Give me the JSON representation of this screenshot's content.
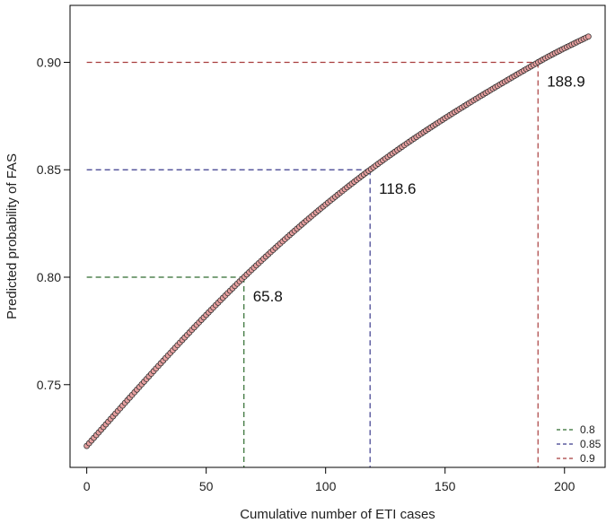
{
  "chart_data": {
    "type": "scatter",
    "xlabel": "Cumulative number of ETI cases",
    "ylabel": "Predicted probability of FAS",
    "xlim": [
      -7,
      217
    ],
    "ylim": [
      0.7115,
      0.9265
    ],
    "x_ticks": [
      0,
      50,
      100,
      150,
      200
    ],
    "x_tick_labels": [
      "0",
      "50",
      "100",
      "150",
      "200"
    ],
    "y_ticks": [
      0.75,
      0.8,
      0.85,
      0.9
    ],
    "y_tick_labels": [
      "0.75",
      "0.80",
      "0.85",
      "0.90"
    ],
    "grid": false,
    "legend_position": "bottom-right",
    "series": [
      {
        "marker_color": "#e8a0a0",
        "edge_color": "#333333",
        "x_start": 0,
        "x_end": 210,
        "x_step": 1,
        "key_points": [
          {
            "x": 0,
            "y": 0.7215
          },
          {
            "x": 65.8,
            "y": 0.8
          },
          {
            "x": 118.6,
            "y": 0.85
          },
          {
            "x": 188.9,
            "y": 0.9
          },
          {
            "x": 210,
            "y": 0.912
          }
        ]
      }
    ],
    "thresholds": [
      {
        "name": "0.8",
        "y": 0.8,
        "x": 65.8,
        "label": "65.8",
        "color": "#2e6b2e"
      },
      {
        "name": "0.85",
        "y": 0.85,
        "x": 118.6,
        "label": "118.6",
        "color": "#3a3a8c"
      },
      {
        "name": "0.9",
        "y": 0.9,
        "x": 188.9,
        "label": "188.9",
        "color": "#a83c3c"
      }
    ]
  }
}
